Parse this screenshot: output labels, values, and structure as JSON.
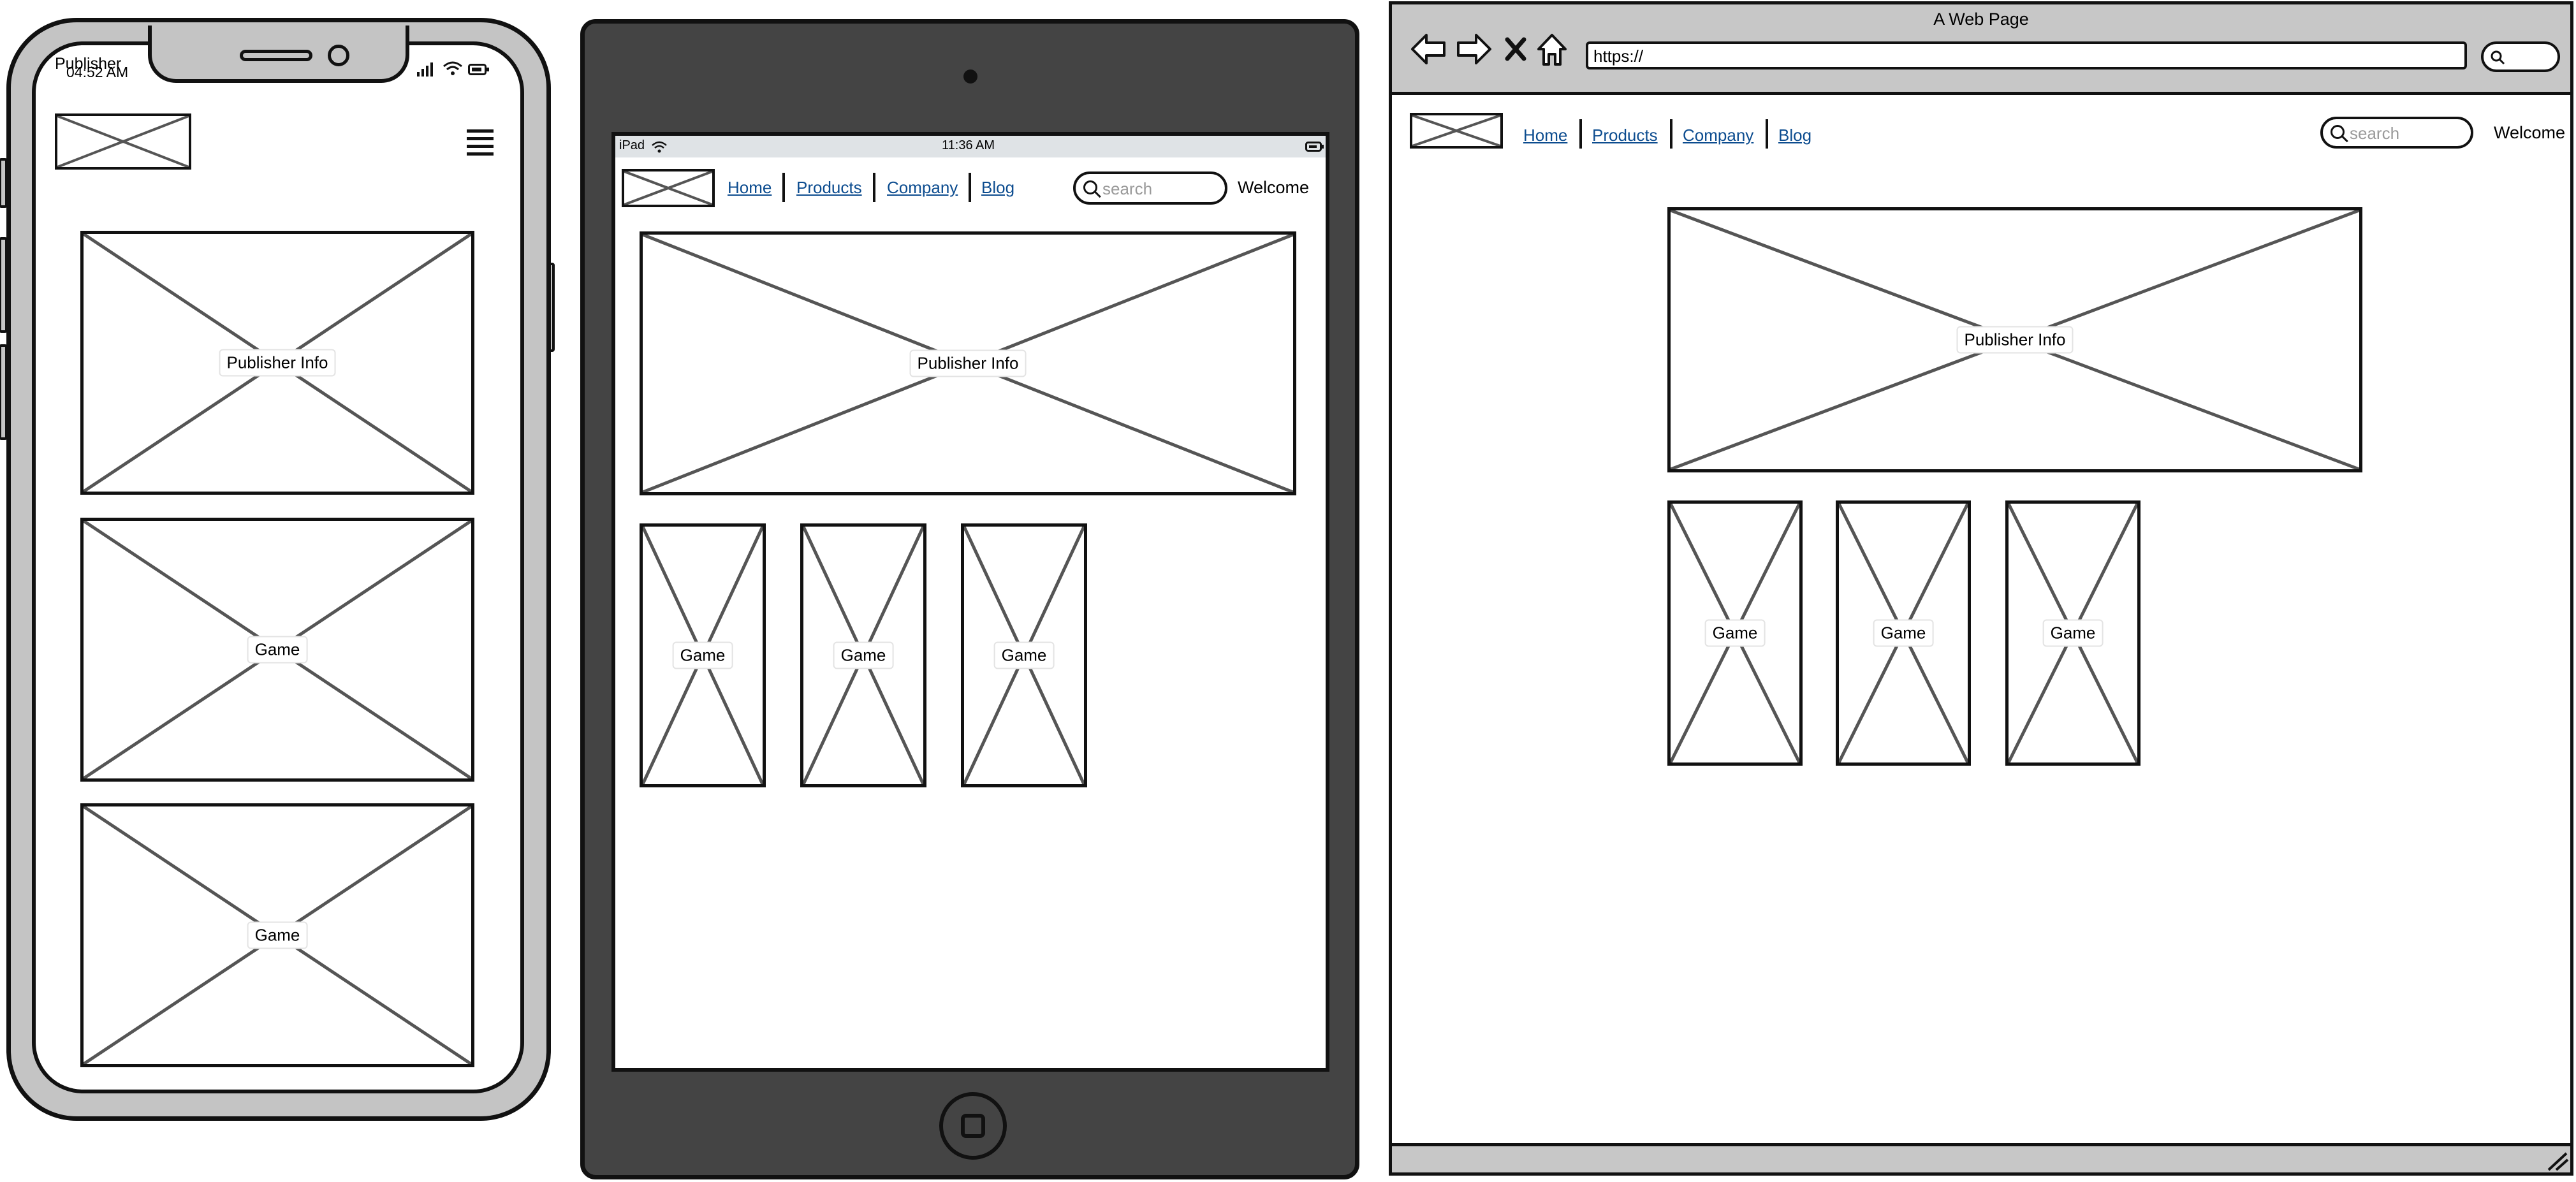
{
  "phone": {
    "status_title": "Publisher",
    "status_time": "04:52 AM",
    "menu_icon": "hamburger-icon",
    "cards": [
      "Publisher Info",
      "Game",
      "Game"
    ]
  },
  "tablet": {
    "status_device": "iPad",
    "status_time": "11:36 AM",
    "nav": [
      "Home",
      "Products",
      "Company",
      "Blog"
    ],
    "search_placeholder": "search",
    "welcome": "Welcome",
    "hero_caption": "Publisher Info",
    "tiles": [
      "Game",
      "Game",
      "Game"
    ]
  },
  "browser": {
    "window_title": "A Web Page",
    "url": "https://",
    "nav": [
      "Home",
      "Products",
      "Company",
      "Blog"
    ],
    "search_placeholder": "search",
    "welcome": "Welcome",
    "hero_caption": "Publisher Info",
    "tiles": [
      "Game",
      "Game",
      "Game"
    ]
  },
  "colors": {
    "tablet_frame": "#444444",
    "phone_frame": "#c4c4c4",
    "browser_chrome": "#c7c7c7",
    "link": "#0c4c8f"
  }
}
